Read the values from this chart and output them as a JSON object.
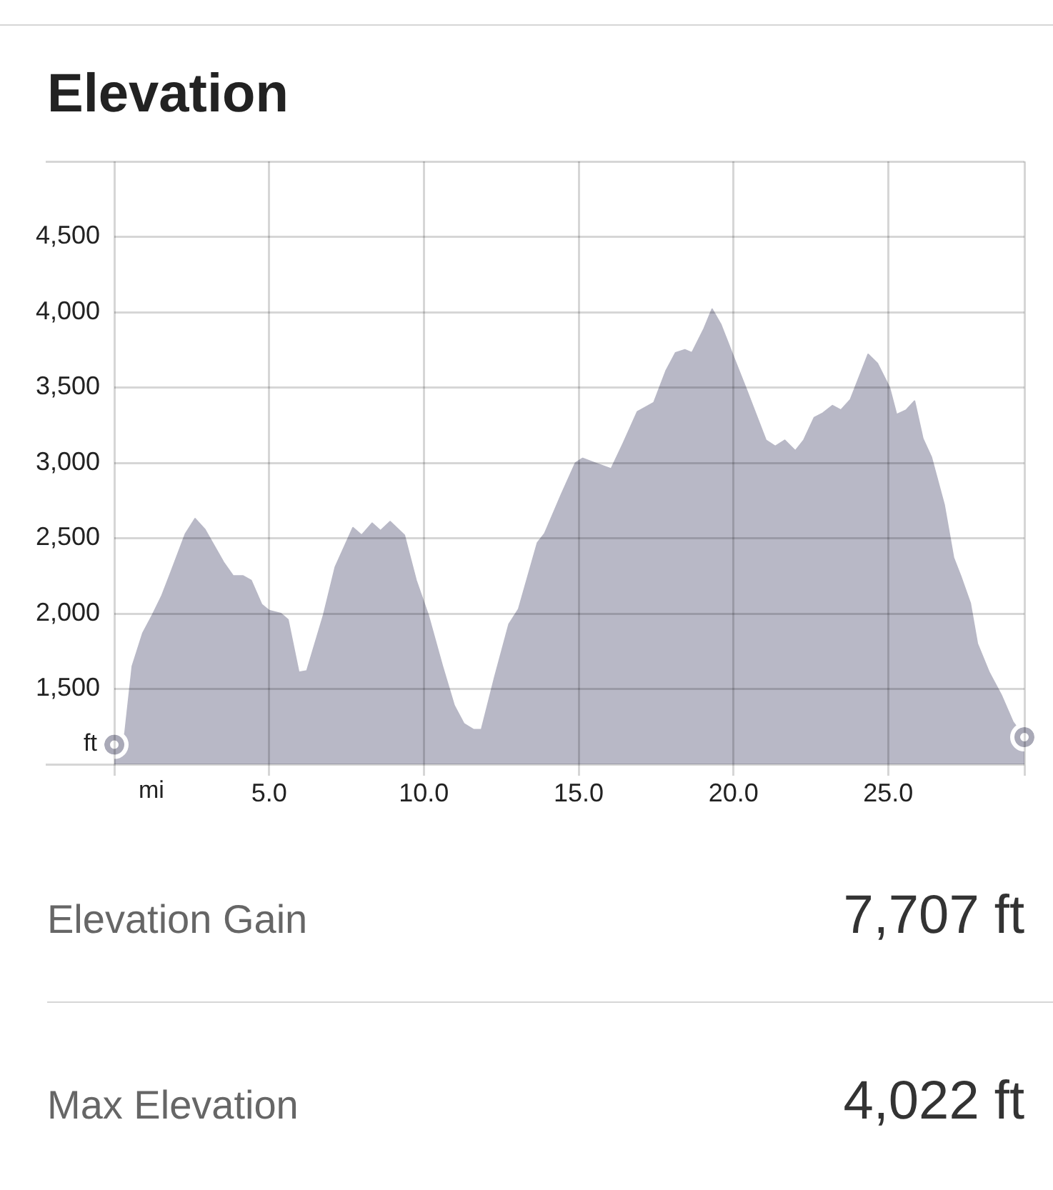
{
  "chart_data": {
    "type": "area",
    "title": "Elevation",
    "xlabel": "mi",
    "ylabel": "ft",
    "x": [
      0,
      0.34,
      0.58,
      0.92,
      1.23,
      1.54,
      1.84,
      2.3,
      2.61,
      2.92,
      3.53,
      3.84,
      4.15,
      4.42,
      4.76,
      5.0,
      5.38,
      5.61,
      5.96,
      6.22,
      6.76,
      7.14,
      7.71,
      7.99,
      8.33,
      8.6,
      8.91,
      9.37,
      9.75,
      10.14,
      10.6,
      10.98,
      11.29,
      11.6,
      11.86,
      12.29,
      12.75,
      13.06,
      13.67,
      13.9,
      14.44,
      14.9,
      15.13,
      15.51,
      16.05,
      16.44,
      16.9,
      17.43,
      17.82,
      18.13,
      18.43,
      18.66,
      19.05,
      19.31,
      19.59,
      19.97,
      20.43,
      21.05,
      21.35,
      21.66,
      22.0,
      22.27,
      22.61,
      22.89,
      23.2,
      23.47,
      23.78,
      24.35,
      24.65,
      25.04,
      25.27,
      25.58,
      25.85,
      26.12,
      26.39,
      26.81,
      27.11,
      27.34,
      27.65,
      27.88,
      28.26,
      28.65,
      29.03,
      29.4
    ],
    "values": [
      1130,
      1200,
      1650,
      1870,
      1990,
      2120,
      2280,
      2530,
      2630,
      2560,
      2340,
      2250,
      2250,
      2220,
      2060,
      2020,
      2000,
      1960,
      1610,
      1620,
      1990,
      2310,
      2570,
      2520,
      2600,
      2550,
      2610,
      2520,
      2220,
      1990,
      1650,
      1390,
      1270,
      1230,
      1230,
      1580,
      1930,
      2030,
      2470,
      2530,
      2790,
      3000,
      3030,
      3000,
      2960,
      3130,
      3340,
      3400,
      3610,
      3730,
      3750,
      3730,
      3890,
      4020,
      3920,
      3720,
      3480,
      3150,
      3110,
      3150,
      3080,
      3150,
      3300,
      3330,
      3380,
      3350,
      3420,
      3720,
      3660,
      3500,
      3320,
      3350,
      3410,
      3160,
      3040,
      2720,
      2370,
      2250,
      2070,
      1800,
      1610,
      1460,
      1280,
      1180
    ],
    "color": "#b8b8c6",
    "xlim": [
      0,
      29.4
    ],
    "ylim": [
      1000,
      5000
    ],
    "xticks": [
      {
        "value": 0,
        "label": null
      },
      {
        "value": 5,
        "label": "5.0"
      },
      {
        "value": 10,
        "label": "10.0"
      },
      {
        "value": 15,
        "label": "15.0"
      },
      {
        "value": 20,
        "label": "20.0"
      },
      {
        "value": 25,
        "label": "25.0"
      },
      {
        "value": 29.4,
        "label": null
      }
    ],
    "yticks": [
      {
        "value": 1000,
        "label": null
      },
      {
        "value": 1500,
        "label": "1,500"
      },
      {
        "value": 2000,
        "label": "2,000"
      },
      {
        "value": 2500,
        "label": "2,500"
      },
      {
        "value": 3000,
        "label": "3,000"
      },
      {
        "value": 3500,
        "label": "3,500"
      },
      {
        "value": 4000,
        "label": "4,000"
      },
      {
        "value": 4500,
        "label": "4,500"
      },
      {
        "value": 5000,
        "label": null
      }
    ],
    "grid": true,
    "annotations": [
      "Elevation Gain",
      "7,707 ft",
      "Max Elevation",
      "4,022 ft"
    ]
  }
}
